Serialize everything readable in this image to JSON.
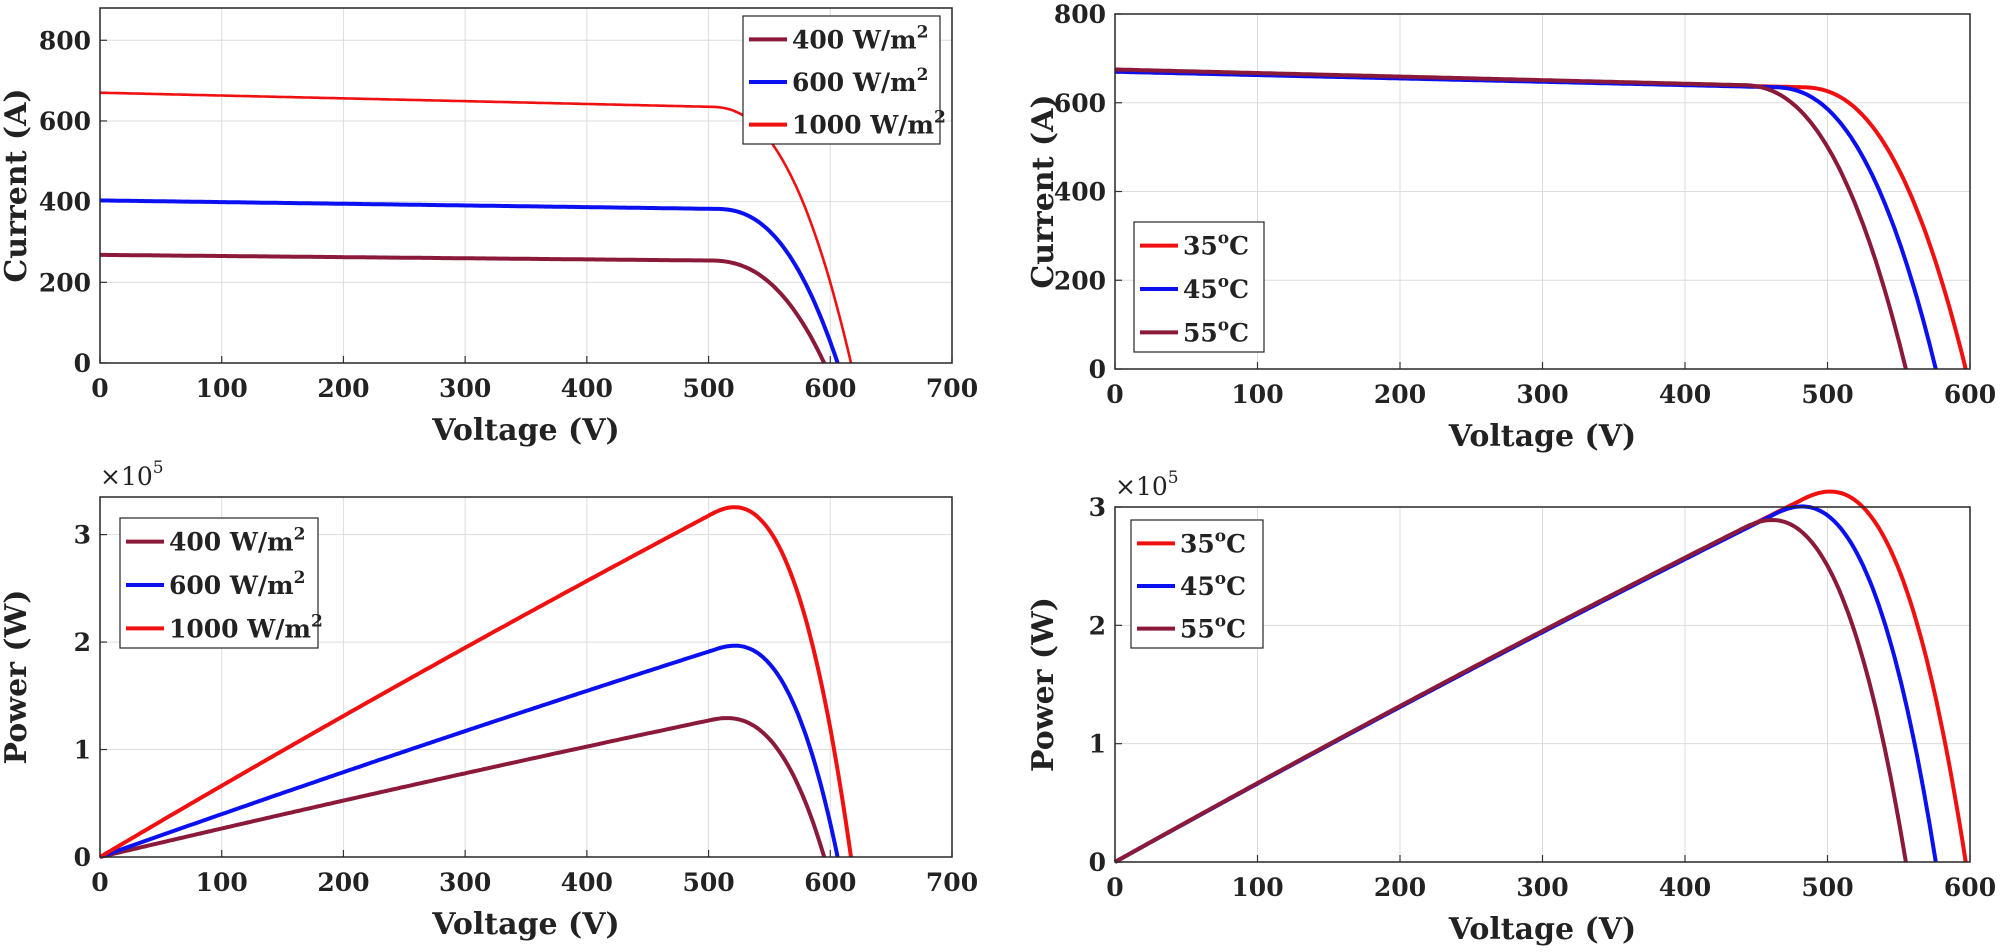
{
  "chart_data": [
    {
      "type": "line",
      "xlabel": "Voltage (V)",
      "ylabel": "Current (A)",
      "xlim": [
        0,
        700
      ],
      "ylim": [
        0,
        880
      ],
      "xticks": [
        "0",
        "100",
        "200",
        "300",
        "400",
        "500",
        "600",
        "700"
      ],
      "yticks": [
        "0",
        "200",
        "400",
        "600",
        "800"
      ],
      "grid": true,
      "legend_position": "top-right",
      "series": [
        {
          "name": "400 W/m",
          "name_sup": "2",
          "color": "#8b1a3a",
          "isc": 268,
          "voc": 595,
          "vknee": 500
        },
        {
          "name": "600 W/m",
          "name_sup": "2",
          "color": "#0a10f0",
          "isc": 403,
          "voc": 606,
          "vknee": 505
        },
        {
          "name": "1000 W/m",
          "name_sup": "2",
          "color": "#f01010",
          "isc": 670,
          "voc": 617,
          "vknee": 500
        }
      ]
    },
    {
      "type": "line",
      "xlabel": "Voltage (V)",
      "ylabel": "Current (A)",
      "xlim": [
        0,
        600
      ],
      "ylim": [
        0,
        800
      ],
      "xticks": [
        "0",
        "100",
        "200",
        "300",
        "400",
        "500",
        "600"
      ],
      "yticks": [
        "0",
        "200",
        "400",
        "600",
        "800"
      ],
      "grid": true,
      "legend_position": "bottom-left",
      "series": [
        {
          "name": "35",
          "name_sup": "o",
          "name_suffix": "C",
          "color": "#f01010",
          "isc": 670,
          "voc": 597,
          "vknee": 480
        },
        {
          "name": "45",
          "name_sup": "o",
          "name_suffix": "C",
          "color": "#0a10f0",
          "isc": 670,
          "voc": 576,
          "vknee": 460
        },
        {
          "name": "55",
          "name_sup": "o",
          "name_suffix": "C",
          "color": "#8b1a3a",
          "isc": 675,
          "voc": 555,
          "vknee": 438
        }
      ]
    },
    {
      "type": "line",
      "xlabel": "Voltage (V)",
      "ylabel": "Power (W)",
      "multiplier": "×10",
      "multiplier_exp": "5",
      "xlim": [
        0,
        700
      ],
      "ylim": [
        0,
        3.35
      ],
      "xticks": [
        "0",
        "100",
        "200",
        "300",
        "400",
        "500",
        "600",
        "700"
      ],
      "yticks": [
        "0",
        "1",
        "2",
        "3"
      ],
      "grid": true,
      "legend_position": "top-left",
      "series": [
        {
          "name": "400 W/m",
          "name_sup": "2",
          "color": "#8b1a3a",
          "isc": 268,
          "voc": 595,
          "vknee": 500
        },
        {
          "name": "600 W/m",
          "name_sup": "2",
          "color": "#0a10f0",
          "isc": 403,
          "voc": 606,
          "vknee": 505
        },
        {
          "name": "1000 W/m",
          "name_sup": "2",
          "color": "#f01010",
          "isc": 670,
          "voc": 617,
          "vknee": 500
        }
      ]
    },
    {
      "type": "line",
      "xlabel": "Voltage (V)",
      "ylabel": "Power (W)",
      "multiplier": "×10",
      "multiplier_exp": "5",
      "xlim": [
        0,
        600
      ],
      "ylim": [
        0,
        3
      ],
      "xticks": [
        "0",
        "100",
        "200",
        "300",
        "400",
        "500",
        "600"
      ],
      "yticks": [
        "0",
        "1",
        "2",
        "3"
      ],
      "grid": true,
      "legend_position": "top-left",
      "series": [
        {
          "name": "35",
          "name_sup": "o",
          "name_suffix": "C",
          "color": "#f01010",
          "isc": 670,
          "voc": 597,
          "vknee": 480
        },
        {
          "name": "45",
          "name_sup": "o",
          "name_suffix": "C",
          "color": "#0a10f0",
          "isc": 670,
          "voc": 576,
          "vknee": 460
        },
        {
          "name": "55",
          "name_sup": "o",
          "name_suffix": "C",
          "color": "#8b1a3a",
          "isc": 675,
          "voc": 555,
          "vknee": 438
        }
      ]
    }
  ]
}
